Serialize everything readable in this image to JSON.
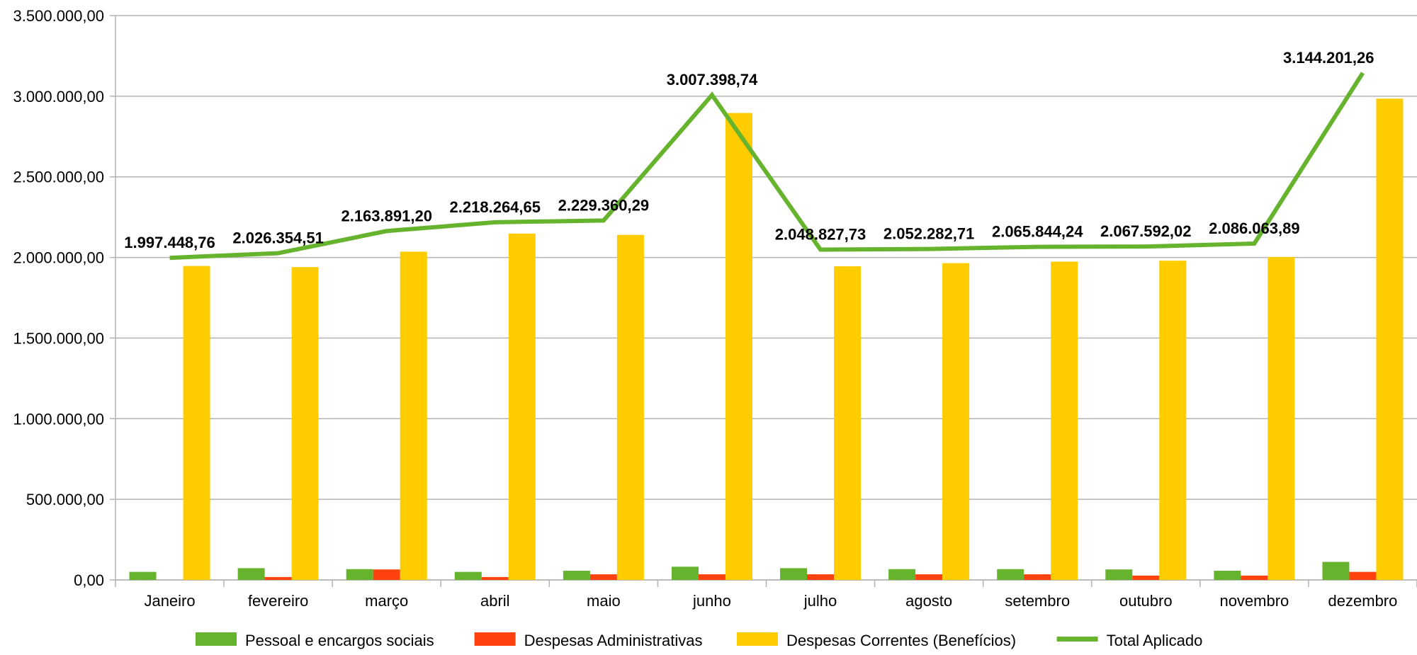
{
  "chart_data": {
    "type": "bar",
    "categories": [
      "Janeiro",
      "fevereiro",
      "março",
      "abril",
      "maio",
      "junho",
      "julho",
      "agosto",
      "setembro",
      "outubro",
      "novembro",
      "dezembro"
    ],
    "series": [
      {
        "name": "Pessoal e encargos sociais",
        "type": "bar",
        "color": "#66b32e",
        "values": [
          50000,
          73000,
          67000,
          50000,
          57000,
          82000,
          73000,
          67000,
          67000,
          65000,
          57000,
          112000
        ]
      },
      {
        "name": "Despesas Administrativas",
        "type": "bar",
        "color": "#ff420e",
        "values": [
          0,
          18000,
          65000,
          18000,
          35000,
          35000,
          35000,
          35000,
          35000,
          27000,
          27000,
          50000
        ]
      },
      {
        "name": "Despesas Correntes (Benefícios)",
        "type": "bar",
        "color": "#ffcc00",
        "values": [
          1947000,
          1940000,
          2036000,
          2148000,
          2140000,
          2896000,
          1945000,
          1965000,
          1974000,
          1980000,
          2003000,
          2985000
        ]
      },
      {
        "name": "Total Aplicado",
        "type": "line",
        "color": "#66b32e",
        "values": [
          1997448.76,
          2026354.51,
          2163891.2,
          2218264.65,
          2229360.29,
          3007398.74,
          2048827.73,
          2052282.71,
          2065844.24,
          2067592.02,
          2086063.89,
          3144201.26
        ],
        "labels": [
          "1.997.448,76",
          "2.026.354,51",
          "2.163.891,20",
          "2.218.264,65",
          "2.229.360,29",
          "3.007.398,74",
          "2.048.827,73",
          "2.052.282,71",
          "2.065.844,24",
          "2.067.592,02",
          "2.086.063,89",
          "3.144.201,26"
        ]
      }
    ],
    "yticks": [
      0,
      500000,
      1000000,
      1500000,
      2000000,
      2500000,
      3000000,
      3500000
    ],
    "ytick_labels": [
      "0,00",
      "500.000,00",
      "1.000.000,00",
      "1.500.000,00",
      "2.000.000,00",
      "2.500.000,00",
      "3.000.000,00",
      "3.500.000,00"
    ],
    "ylim": [
      0,
      3500000
    ],
    "grid": true,
    "legend_position": "bottom",
    "title": "",
    "xlabel": "",
    "ylabel": ""
  }
}
